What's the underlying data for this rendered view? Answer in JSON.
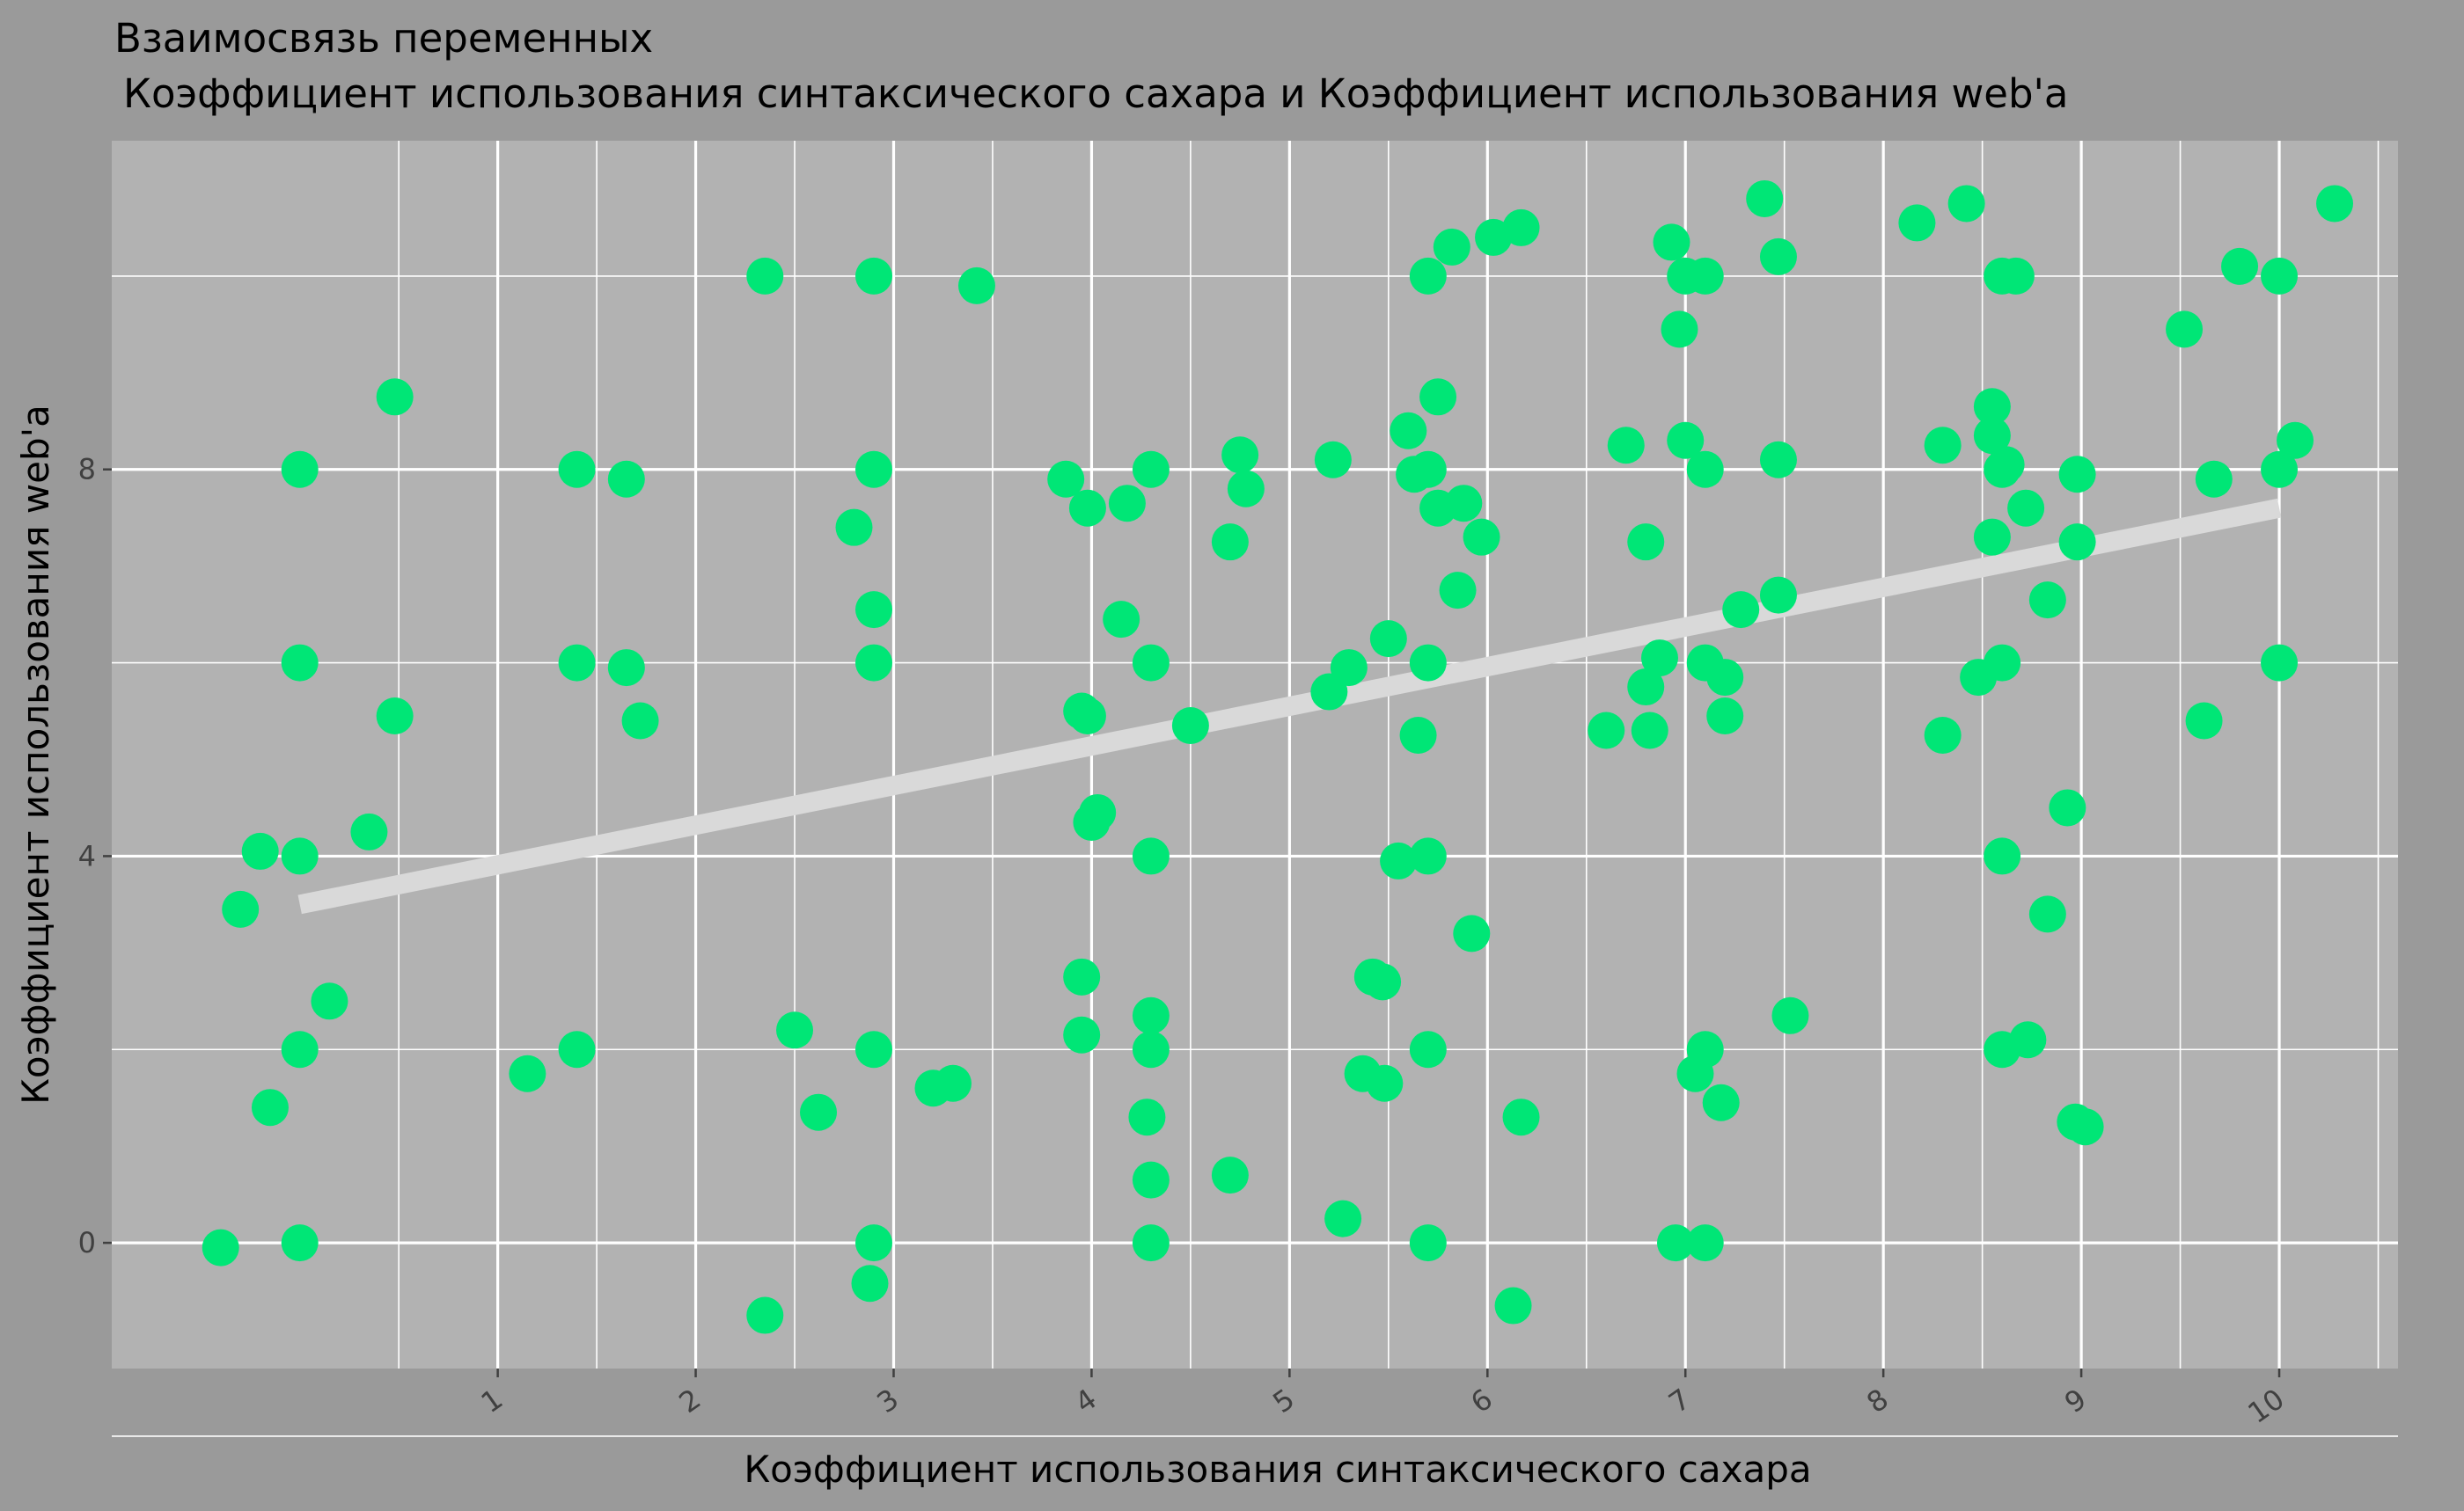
{
  "chart_data": {
    "type": "scatter",
    "title": "Взаимосвязь переменных",
    "subtitle": "Коэффициент использования синтаксического сахара и Коэффициент использования web'a",
    "xlabel": "Коэффициент использования синтаксического сахара",
    "ylabel": "Коэффициент использования web'a",
    "x_ticks": [
      1,
      2,
      3,
      4,
      5,
      6,
      7,
      8,
      9,
      10
    ],
    "y_ticks": [
      0,
      4,
      8
    ],
    "xlim": [
      -0.95,
      10.6
    ],
    "ylim": [
      -1.3,
      11.4
    ],
    "grid": true,
    "colors": {
      "background": "#9a9a9a",
      "panel": "#b2b2b2",
      "grid": "#ffffff",
      "points": "#00e676",
      "trend": "#d9d9d9",
      "text": "#000000",
      "tick_text": "#404040"
    },
    "trend_line": {
      "x": [
        0,
        10
      ],
      "y": [
        3.5,
        7.6
      ]
    },
    "points": [
      [
        -0.4,
        -0.05
      ],
      [
        0,
        0
      ],
      [
        -0.3,
        3.45
      ],
      [
        -0.15,
        1.4
      ],
      [
        -0.2,
        4.05
      ],
      [
        0,
        4
      ],
      [
        0,
        2
      ],
      [
        0.15,
        2.5
      ],
      [
        0,
        6
      ],
      [
        0,
        8
      ],
      [
        0.35,
        4.25
      ],
      [
        0.48,
        5.45
      ],
      [
        0.48,
        8.75
      ],
      [
        1.15,
        1.75
      ],
      [
        1.4,
        2
      ],
      [
        1.4,
        6
      ],
      [
        1.4,
        8
      ],
      [
        1.65,
        5.95
      ],
      [
        1.65,
        7.9
      ],
      [
        1.72,
        5.4
      ],
      [
        2.35,
        -0.75
      ],
      [
        2.35,
        10
      ],
      [
        2.5,
        2.2
      ],
      [
        2.62,
        1.35
      ],
      [
        2.8,
        7.4
      ],
      [
        2.9,
        10
      ],
      [
        2.9,
        8
      ],
      [
        2.9,
        6.55
      ],
      [
        2.9,
        6
      ],
      [
        2.9,
        2
      ],
      [
        2.9,
        0
      ],
      [
        2.88,
        -0.42
      ],
      [
        3.2,
        1.6
      ],
      [
        3.3,
        1.65
      ],
      [
        3.42,
        9.9
      ],
      [
        3.87,
        7.9
      ],
      [
        3.95,
        5.5
      ],
      [
        3.95,
        2.15
      ],
      [
        3.95,
        2.75
      ],
      [
        3.98,
        5.45
      ],
      [
        3.98,
        7.6
      ],
      [
        4.0,
        4.35
      ],
      [
        4.03,
        4.45
      ],
      [
        4.15,
        6.45
      ],
      [
        4.18,
        7.65
      ],
      [
        4.3,
        8
      ],
      [
        4.3,
        6
      ],
      [
        4.3,
        4
      ],
      [
        4.3,
        2.35
      ],
      [
        4.3,
        2
      ],
      [
        4.28,
        1.3
      ],
      [
        4.3,
        0.65
      ],
      [
        4.3,
        0
      ],
      [
        4.5,
        5.35
      ],
      [
        4.7,
        7.25
      ],
      [
        4.7,
        0.7
      ],
      [
        4.75,
        8.15
      ],
      [
        4.78,
        7.8
      ],
      [
        5.2,
        5.7
      ],
      [
        5.22,
        8.1
      ],
      [
        5.27,
        0.25
      ],
      [
        5.3,
        5.95
      ],
      [
        5.37,
        1.75
      ],
      [
        5.42,
        2.75
      ],
      [
        5.47,
        2.7
      ],
      [
        5.48,
        1.65
      ],
      [
        5.5,
        6.25
      ],
      [
        5.55,
        3.95
      ],
      [
        5.6,
        8.4
      ],
      [
        5.63,
        7.95
      ],
      [
        5.65,
        5.25
      ],
      [
        5.7,
        10
      ],
      [
        5.7,
        8
      ],
      [
        5.7,
        6
      ],
      [
        5.7,
        4
      ],
      [
        5.7,
        2
      ],
      [
        5.7,
        0
      ],
      [
        5.75,
        7.6
      ],
      [
        5.75,
        8.75
      ],
      [
        5.82,
        10.3
      ],
      [
        5.85,
        6.75
      ],
      [
        5.88,
        7.65
      ],
      [
        5.92,
        3.2
      ],
      [
        5.97,
        7.3
      ],
      [
        6.03,
        10.4
      ],
      [
        6.13,
        -0.65
      ],
      [
        6.17,
        1.3
      ],
      [
        6.17,
        10.5
      ],
      [
        6.6,
        5.3
      ],
      [
        6.7,
        8.25
      ],
      [
        6.8,
        7.25
      ],
      [
        6.8,
        5.75
      ],
      [
        6.82,
        5.3
      ],
      [
        6.87,
        6.05
      ],
      [
        6.93,
        10.35
      ],
      [
        6.95,
        0
      ],
      [
        6.97,
        9.45
      ],
      [
        7.0,
        10
      ],
      [
        7.0,
        8.3
      ],
      [
        7.05,
        1.75
      ],
      [
        7.1,
        10
      ],
      [
        7.1,
        8
      ],
      [
        7.1,
        6
      ],
      [
        7.1,
        2
      ],
      [
        7.1,
        0
      ],
      [
        7.18,
        1.45
      ],
      [
        7.2,
        5.85
      ],
      [
        7.2,
        5.45
      ],
      [
        7.28,
        6.55
      ],
      [
        7.4,
        10.8
      ],
      [
        7.47,
        10.2
      ],
      [
        7.47,
        8.1
      ],
      [
        7.47,
        6.7
      ],
      [
        7.53,
        2.35
      ],
      [
        8.17,
        10.55
      ],
      [
        8.3,
        8.25
      ],
      [
        8.3,
        5.25
      ],
      [
        8.42,
        10.75
      ],
      [
        8.48,
        5.85
      ],
      [
        8.55,
        8.65
      ],
      [
        8.55,
        8.35
      ],
      [
        8.55,
        7.3
      ],
      [
        8.6,
        10
      ],
      [
        8.6,
        8
      ],
      [
        8.6,
        6
      ],
      [
        8.6,
        4
      ],
      [
        8.6,
        2
      ],
      [
        8.62,
        8.05
      ],
      [
        8.67,
        10
      ],
      [
        8.72,
        7.6
      ],
      [
        8.73,
        2.1
      ],
      [
        8.83,
        3.4
      ],
      [
        8.83,
        6.65
      ],
      [
        8.93,
        4.5
      ],
      [
        8.98,
        7.95
      ],
      [
        8.98,
        7.25
      ],
      [
        8.97,
        1.25
      ],
      [
        9.02,
        1.2
      ],
      [
        9.52,
        9.45
      ],
      [
        9.62,
        5.4
      ],
      [
        9.67,
        7.9
      ],
      [
        9.8,
        10.1
      ],
      [
        10,
        10
      ],
      [
        10,
        8
      ],
      [
        10,
        6
      ],
      [
        10.08,
        8.3
      ],
      [
        10.28,
        10.75
      ]
    ]
  }
}
